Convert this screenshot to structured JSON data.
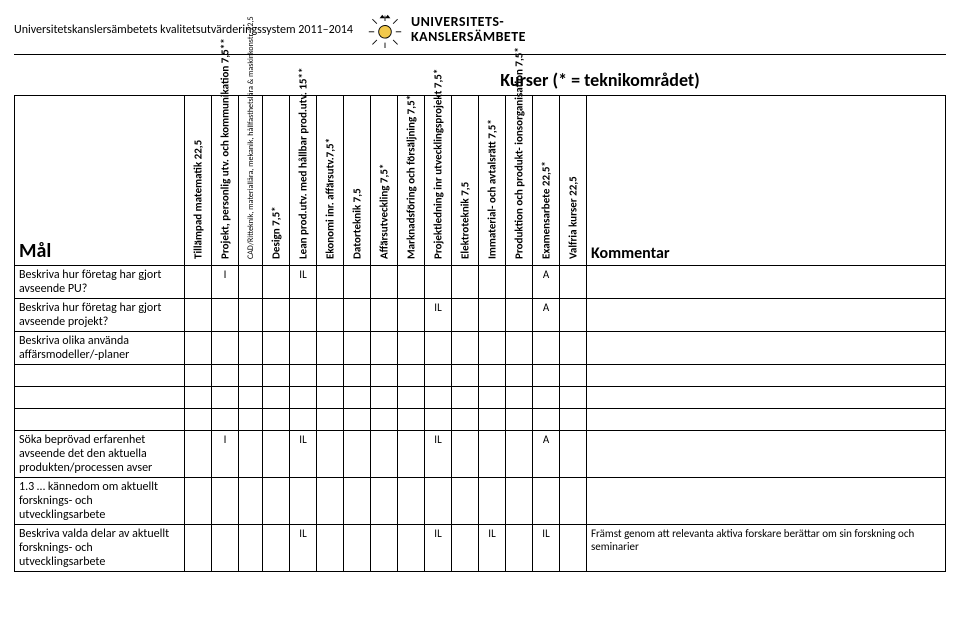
{
  "header": {
    "system_text": "Universitetskanslersämbetets kvalitetsutvärderingssystem 2011–2014",
    "logo_line1": "UNIVERSITETS-",
    "logo_line2": "KANSLERSÄMBETE"
  },
  "section_title": "Kurser (* = teknikområdet)",
  "labels": {
    "goal_header": "Mål",
    "kommentar_header": "Kommentar"
  },
  "courses": [
    {
      "label": "Tillämpad matematik 22,5",
      "small": false
    },
    {
      "label": "Projekt, personlig utv. och kommunikation 7,5**",
      "small": false
    },
    {
      "label": "CAD/Ritteknik, materiallära, mekanik, hållfasthetslära & maskinkonstr. 22,5",
      "small": true
    },
    {
      "label": "Design 7,5*",
      "small": false
    },
    {
      "label": "Lean prod.utv. med hållbar prod.utv. 15**",
      "small": false
    },
    {
      "label": "Ekonomi inr. affärsutv.7,5*",
      "small": false
    },
    {
      "label": "Datorteknik 7,5",
      "small": false
    },
    {
      "label": "Affärsutveckling 7,5*",
      "small": false
    },
    {
      "label": "Marknadsföring och försäljning 7,5*",
      "small": false
    },
    {
      "label": "Projektledning inr utvecklingsprojekt 7,5*",
      "small": false
    },
    {
      "label": "Elektroteknik 7,5",
      "small": false
    },
    {
      "label": "Immaterial- och avtalsrätt 7,5*",
      "small": false
    },
    {
      "label": "Produktion och produkt- ionsorganisation 7,5*",
      "small": false
    },
    {
      "label": "Examensarbete 22,5*",
      "small": false
    },
    {
      "label": "Valfria kurser 22,5",
      "small": false
    }
  ],
  "rows": [
    {
      "goal": "Beskriva hur företag har gjort avseende PU?",
      "cells": [
        "",
        "I",
        "",
        "",
        "IL",
        "",
        "",
        "",
        "",
        "",
        "",
        "",
        "",
        "A",
        ""
      ],
      "comment": ""
    },
    {
      "goal": "Beskriva hur företag har gjort avseende projekt?",
      "cells": [
        "",
        "",
        "",
        "",
        "",
        "",
        "",
        "",
        "",
        "IL",
        "",
        "",
        "",
        "A",
        ""
      ],
      "comment": ""
    },
    {
      "goal": "Beskriva olika använda affärsmodeller/-planer",
      "cells": [
        "",
        "",
        "",
        "",
        "",
        "",
        "",
        "",
        "",
        "",
        "",
        "",
        "",
        "",
        ""
      ],
      "comment": ""
    },
    {
      "goal": "",
      "cells": [
        "",
        "",
        "",
        "",
        "",
        "",
        "",
        "",
        "",
        "",
        "",
        "",
        "",
        "",
        ""
      ],
      "comment": "",
      "spacer": true
    },
    {
      "goal": "",
      "cells": [
        "",
        "",
        "",
        "",
        "",
        "",
        "",
        "",
        "",
        "",
        "",
        "",
        "",
        "",
        ""
      ],
      "comment": "",
      "spacer": true
    },
    {
      "goal": "",
      "cells": [
        "",
        "",
        "",
        "",
        "",
        "",
        "",
        "",
        "",
        "",
        "",
        "",
        "",
        "",
        ""
      ],
      "comment": "",
      "spacer": true
    },
    {
      "goal": "Söka beprövad erfarenhet avseende det den aktuella produkten/processen avser",
      "cells": [
        "",
        "I",
        "",
        "",
        "IL",
        "",
        "",
        "",
        "",
        "IL",
        "",
        "",
        "",
        "A",
        ""
      ],
      "comment": ""
    },
    {
      "goal": "1.3 … kännedom om aktuellt forsknings- och utvecklingsarbete",
      "cells": [
        "",
        "",
        "",
        "",
        "",
        "",
        "",
        "",
        "",
        "",
        "",
        "",
        "",
        "",
        ""
      ],
      "comment": ""
    },
    {
      "goal": "Beskriva valda delar av aktuellt forsknings- och utvecklingsarbete",
      "cells": [
        "",
        "",
        "",
        "",
        "IL",
        "",
        "",
        "",
        "",
        "IL",
        "",
        "IL",
        "",
        "IL",
        ""
      ],
      "comment": "Främst genom att relevanta aktiva forskare berättar om sin forskning och seminarier"
    }
  ],
  "colors": {
    "border": "#000000",
    "background": "#ffffff",
    "text": "#000000",
    "logo_accent": "#f2c94c"
  }
}
